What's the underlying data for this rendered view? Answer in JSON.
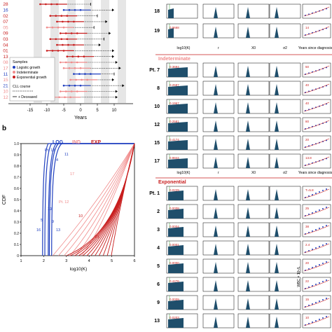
{
  "panel_a": {
    "patients": [
      "28",
      "16",
      "02",
      "07",
      "05",
      "09",
      "03",
      "04",
      "01",
      "13",
      "08",
      "17",
      "11",
      "15",
      "21",
      "10",
      "12"
    ],
    "x_ticks": [
      "-15",
      "-10",
      "-5",
      "0",
      "5",
      "10"
    ],
    "xlabel": "Years",
    "legend": {
      "samples_title": "Samples",
      "logistic": "Logistic growth",
      "indeterminate": "Indeterminate",
      "exponential": "Exponential growth",
      "cll_course": "CLL course",
      "deceased": "+ Deceased"
    },
    "colors": {
      "logistic": "#1f3fbf",
      "indeterminate": "#f08a8a",
      "exponential": "#c81e1e"
    }
  },
  "panel_b": {
    "label": "b",
    "ylabel": "CDF",
    "xlabel": "log10(K)",
    "y_ticks": [
      "0",
      "0.1",
      "0.2",
      "0.3",
      "0.4",
      "0.5",
      "0.6",
      "0.7",
      "0.8",
      "0.9",
      "1.0"
    ],
    "x_ticks": [
      "1",
      "2",
      "3",
      "4",
      "5",
      "6"
    ],
    "group_labels": {
      "log": "LOG",
      "ind": "IND",
      "exp": "EXP"
    },
    "curve_labels": [
      "Pt. 18",
      "4",
      "11",
      "19",
      "5",
      "16",
      "9",
      "13",
      "17",
      "Pt. 12",
      "10",
      "Pt."
    ]
  },
  "panel_c": {
    "top_rows": [
      {
        "label": "18",
        "val": "",
        "note": "",
        "ytick": "40"
      },
      {
        "label": "19",
        "val": "0.9668",
        "note": "14",
        "ytick": "40"
      }
    ],
    "top_axis": {
      "xlabel_k": "log10(K)",
      "xlabel_r": "r",
      "xlabel_x0": "X0",
      "xlabel_s": "σ2",
      "yl": "Years since diagnosis"
    },
    "sections": [
      {
        "title": "Indeterminate",
        "rows": [
          {
            "label": "Pt. 7",
            "val": "0.3694",
            "note": "50"
          },
          {
            "label": "8",
            "val": "0.2587",
            "note": "40"
          },
          {
            "label": "10",
            "val": "0.1967",
            "note": "40"
          },
          {
            "label": "12",
            "val": "0.2581",
            "note": "80"
          },
          {
            "label": "15",
            "val": "0.4174",
            "note": "20"
          },
          {
            "label": "17",
            "val": "0.9844",
            "note": "13.8"
          }
        ],
        "xlabels": {
          "k": "log10(K)",
          "r": "r",
          "x0": "X0",
          "s": "σ2",
          "time": "Years since diagnosis"
        },
        "time_ticks": [
          "11.5",
          "12",
          "12.5",
          "13",
          "13.5"
        ]
      },
      {
        "title": "Exponential",
        "rows": [
          {
            "label": "Pt. 1",
            "val": "0.0229",
            "note": "T=5.8"
          },
          {
            "label": "2",
            "val": "0.0008",
            "note": "25"
          },
          {
            "label": "3",
            "val": "0.0004",
            "note": "38"
          },
          {
            "label": "4",
            "val": "0.0001",
            "note": "2.4"
          },
          {
            "label": "5",
            "val": "0.0000",
            "note": "20"
          },
          {
            "label": "6",
            "val": "0.4476",
            "note": "22"
          },
          {
            "label": "9",
            "val": "0.0009",
            "note": "15"
          },
          {
            "label": "13",
            "val": "0.0203",
            "note": "10"
          }
        ]
      }
    ],
    "wbc_label": "WBC × 10⁹/L"
  }
}
